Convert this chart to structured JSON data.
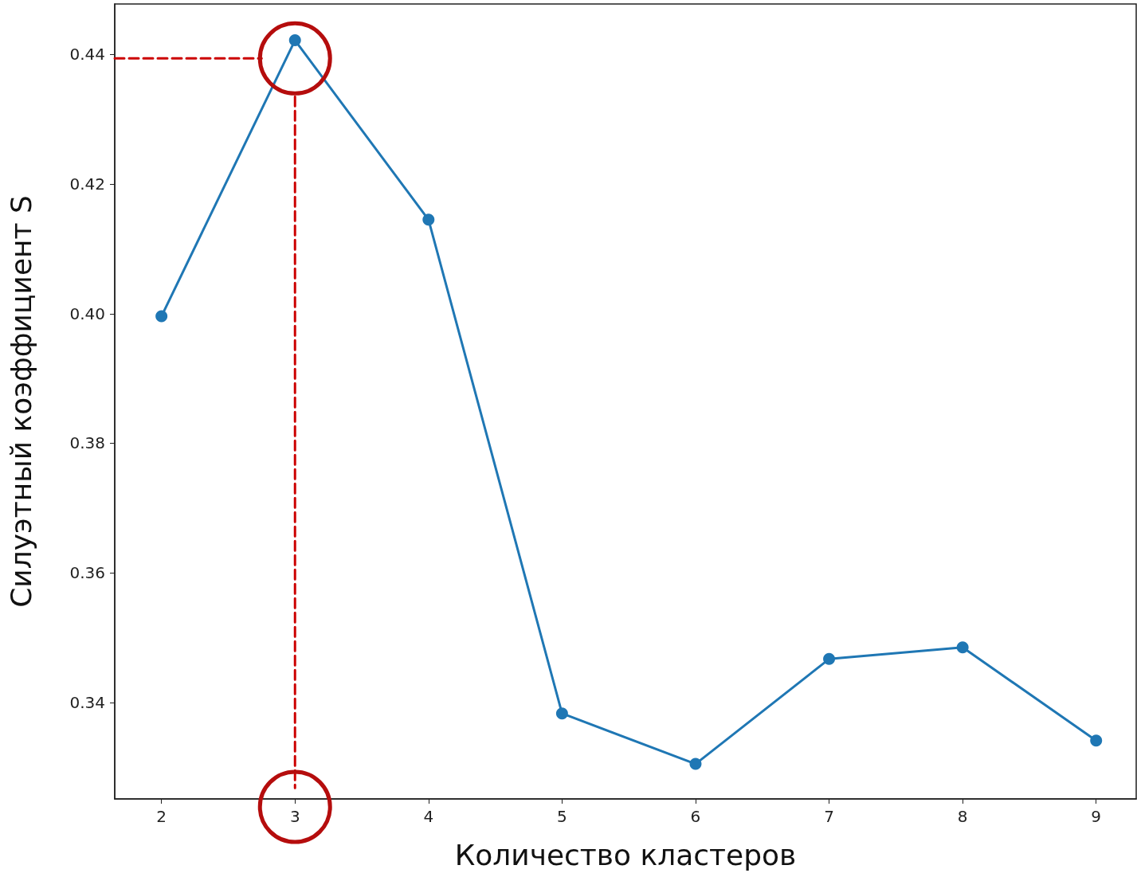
{
  "chart_data": {
    "type": "line",
    "xlabel": "Количество кластеров",
    "ylabel": "Силуэтный коэффициент S",
    "x": [
      2,
      3,
      4,
      5,
      6,
      7,
      8,
      9
    ],
    "series": [
      {
        "color": "#1f77b4",
        "values": [
          0.3996,
          0.4422,
          0.4145,
          0.3383,
          0.3305,
          0.3467,
          0.3485,
          0.3341
        ],
        "marker": "circle",
        "line_style": "solid"
      },
      {
        "type": "line",
        "color": "#cc0000",
        "x": [
          1.65,
          2.75
        ],
        "values": [
          0.4394,
          0.4394
        ],
        "marker": "none",
        "line_style": "dashed"
      },
      {
        "type": "line",
        "color": "#cc0000",
        "x": [
          3,
          3
        ],
        "values": [
          0.4335,
          0.3268
        ],
        "marker": "none",
        "line_style": "dashed"
      }
    ],
    "xlim": [
      1.65,
      9.3
    ],
    "xticks": [
      2,
      3,
      4,
      5,
      6,
      7,
      8,
      9
    ],
    "ylim": [
      0.3251,
      0.4478
    ],
    "yticks": [
      0.34,
      0.36,
      0.38,
      {
        "value": 0.4,
        "label": "0.40"
      },
      0.42,
      0.44
    ],
    "grid": false
  }
}
